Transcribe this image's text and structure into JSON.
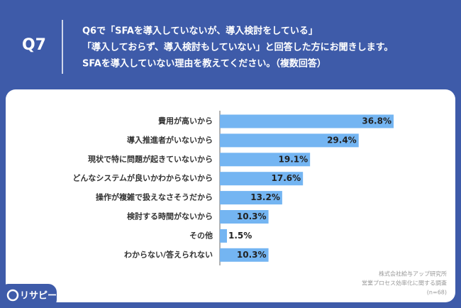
{
  "header": {
    "label": "Q7",
    "question": [
      "Q6で「SFAを導入していないが、導入検討をしている」",
      "「導入しておらず、導入検討もしていない」と回答した方にお聞きします。",
      "SFAを導入していない理由を教えてください。（複数回答）"
    ]
  },
  "chart_data": {
    "type": "bar",
    "orientation": "horizontal",
    "categories": [
      "費用が高いから",
      "導入推進者がいないから",
      "現状で特に問題が起きていないから",
      "どんなシステムが良いかわからないから",
      "操作が複雑で扱えなさそうだから",
      "検討する時間がないから",
      "その他",
      "わからない/答えられない"
    ],
    "values": [
      36.8,
      29.4,
      19.1,
      17.6,
      13.2,
      10.3,
      1.5,
      10.3
    ],
    "value_labels": [
      "36.8%",
      "29.4%",
      "19.1%",
      "17.6%",
      "13.2%",
      "10.3%",
      "1.5%",
      "10.3%"
    ],
    "color": "#74b5f2"
  },
  "source": [
    "株式会社給与アップ研究所",
    "営業プロセス効率化に関する調査",
    "(n=68)"
  ],
  "logo": "リサピー"
}
